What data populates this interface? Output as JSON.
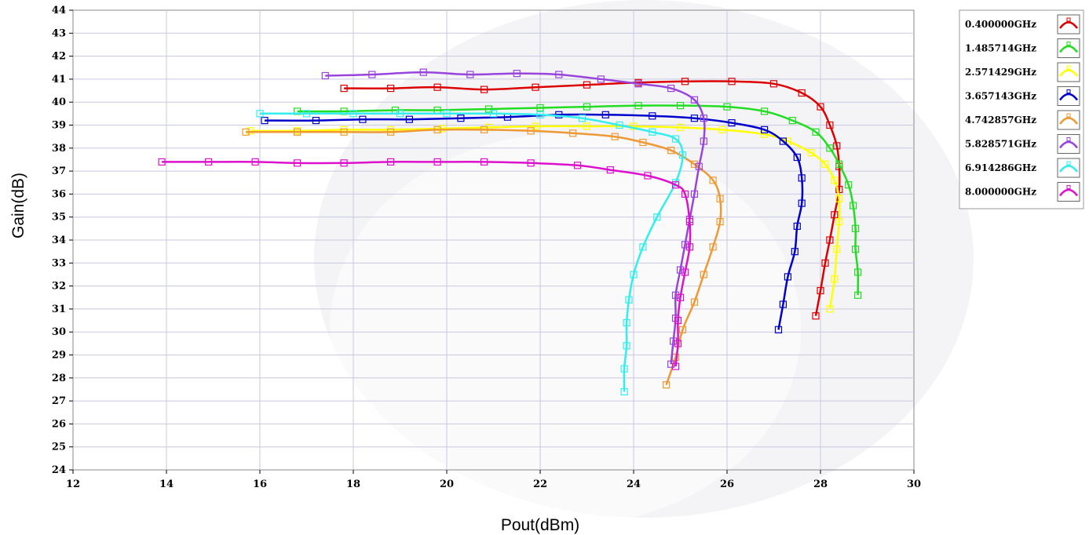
{
  "chart_data": {
    "type": "line",
    "title": "",
    "xlabel": "Pout(dBm)",
    "ylabel": "Gain(dB)",
    "xlim": [
      12,
      30
    ],
    "ylim": [
      24,
      44
    ],
    "x_ticks": [
      12,
      14,
      16,
      18,
      20,
      22,
      24,
      26,
      28,
      30
    ],
    "y_ticks": [
      24,
      25,
      26,
      27,
      28,
      29,
      30,
      31,
      32,
      33,
      34,
      35,
      36,
      37,
      38,
      39,
      40,
      41,
      42,
      43,
      44
    ],
    "grid": true,
    "legend_position": "top-right outside",
    "series": [
      {
        "name": "0.400000GHz",
        "color": "#dd0000",
        "points": [
          [
            17.8,
            40.6
          ],
          [
            18.8,
            40.6
          ],
          [
            19.8,
            40.65
          ],
          [
            20.8,
            40.55
          ],
          [
            21.9,
            40.65
          ],
          [
            23.0,
            40.75
          ],
          [
            24.1,
            40.85
          ],
          [
            25.1,
            40.9
          ],
          [
            26.1,
            40.9
          ],
          [
            27.0,
            40.8
          ],
          [
            27.6,
            40.4
          ],
          [
            28.0,
            39.8
          ],
          [
            28.2,
            39.0
          ],
          [
            28.35,
            38.1
          ],
          [
            28.4,
            37.2
          ],
          [
            28.4,
            36.2
          ],
          [
            28.3,
            35.1
          ],
          [
            28.2,
            34.0
          ],
          [
            28.1,
            33.0
          ],
          [
            28.0,
            31.8
          ],
          [
            27.9,
            30.7
          ]
        ]
      },
      {
        "name": "1.485714GHz",
        "color": "#22dd22",
        "points": [
          [
            16.8,
            39.6
          ],
          [
            17.8,
            39.6
          ],
          [
            18.9,
            39.65
          ],
          [
            19.8,
            39.65
          ],
          [
            20.9,
            39.7
          ],
          [
            22.0,
            39.75
          ],
          [
            23.0,
            39.8
          ],
          [
            24.1,
            39.85
          ],
          [
            25.0,
            39.85
          ],
          [
            26.0,
            39.8
          ],
          [
            26.8,
            39.6
          ],
          [
            27.4,
            39.2
          ],
          [
            27.9,
            38.7
          ],
          [
            28.2,
            38.0
          ],
          [
            28.4,
            37.3
          ],
          [
            28.6,
            36.4
          ],
          [
            28.7,
            35.5
          ],
          [
            28.75,
            34.5
          ],
          [
            28.75,
            33.6
          ],
          [
            28.8,
            32.6
          ],
          [
            28.8,
            31.6
          ]
        ]
      },
      {
        "name": "2.571429GHz",
        "color": "#ffff00",
        "points": [
          [
            15.8,
            38.75
          ],
          [
            16.8,
            38.75
          ],
          [
            17.8,
            38.8
          ],
          [
            18.8,
            38.8
          ],
          [
            19.9,
            38.85
          ],
          [
            20.9,
            38.9
          ],
          [
            21.9,
            38.95
          ],
          [
            23.0,
            38.95
          ],
          [
            24.0,
            38.95
          ],
          [
            25.0,
            38.9
          ],
          [
            25.9,
            38.8
          ],
          [
            26.8,
            38.6
          ],
          [
            27.3,
            38.3
          ],
          [
            27.8,
            37.8
          ],
          [
            28.1,
            37.3
          ],
          [
            28.3,
            36.6
          ],
          [
            28.4,
            35.8
          ],
          [
            28.4,
            34.8
          ],
          [
            28.35,
            33.6
          ],
          [
            28.3,
            32.3
          ],
          [
            28.2,
            31.0
          ]
        ]
      },
      {
        "name": "3.657143GHz",
        "color": "#0000cc",
        "points": [
          [
            16.1,
            39.2
          ],
          [
            17.2,
            39.2
          ],
          [
            18.2,
            39.25
          ],
          [
            19.2,
            39.25
          ],
          [
            20.3,
            39.3
          ],
          [
            21.3,
            39.35
          ],
          [
            22.4,
            39.45
          ],
          [
            23.4,
            39.45
          ],
          [
            24.4,
            39.4
          ],
          [
            25.3,
            39.3
          ],
          [
            26.1,
            39.1
          ],
          [
            26.8,
            38.8
          ],
          [
            27.2,
            38.3
          ],
          [
            27.5,
            37.6
          ],
          [
            27.6,
            36.7
          ],
          [
            27.6,
            35.6
          ],
          [
            27.5,
            34.6
          ],
          [
            27.45,
            33.5
          ],
          [
            27.3,
            32.4
          ],
          [
            27.2,
            31.2
          ],
          [
            27.1,
            30.1
          ]
        ]
      },
      {
        "name": "4.742857GHz",
        "color": "#ee9933",
        "points": [
          [
            15.7,
            38.7
          ],
          [
            16.8,
            38.7
          ],
          [
            17.8,
            38.7
          ],
          [
            18.8,
            38.7
          ],
          [
            19.8,
            38.8
          ],
          [
            20.8,
            38.8
          ],
          [
            21.8,
            38.75
          ],
          [
            22.7,
            38.65
          ],
          [
            23.6,
            38.5
          ],
          [
            24.2,
            38.25
          ],
          [
            24.8,
            37.9
          ],
          [
            25.3,
            37.3
          ],
          [
            25.7,
            36.6
          ],
          [
            25.85,
            35.8
          ],
          [
            25.85,
            34.8
          ],
          [
            25.7,
            33.7
          ],
          [
            25.5,
            32.5
          ],
          [
            25.3,
            31.3
          ],
          [
            25.05,
            30.1
          ],
          [
            24.9,
            28.9
          ],
          [
            24.7,
            27.7
          ]
        ]
      },
      {
        "name": "5.828571GHz",
        "color": "#9944dd",
        "points": [
          [
            17.4,
            41.15
          ],
          [
            18.4,
            41.2
          ],
          [
            19.5,
            41.3
          ],
          [
            20.5,
            41.2
          ],
          [
            21.5,
            41.25
          ],
          [
            22.4,
            41.2
          ],
          [
            23.3,
            41.0
          ],
          [
            24.1,
            40.8
          ],
          [
            24.8,
            40.6
          ],
          [
            25.3,
            40.1
          ],
          [
            25.5,
            39.3
          ],
          [
            25.5,
            38.3
          ],
          [
            25.4,
            37.2
          ],
          [
            25.3,
            36.0
          ],
          [
            25.2,
            34.9
          ],
          [
            25.1,
            33.8
          ],
          [
            25.0,
            32.7
          ],
          [
            24.9,
            31.6
          ],
          [
            24.9,
            30.6
          ],
          [
            24.85,
            29.6
          ],
          [
            24.8,
            28.6
          ]
        ]
      },
      {
        "name": "6.914286GHz",
        "color": "#33eeee",
        "points": [
          [
            16.0,
            39.5
          ],
          [
            17.0,
            39.5
          ],
          [
            18.0,
            39.5
          ],
          [
            19.0,
            39.5
          ],
          [
            20.0,
            39.5
          ],
          [
            21.0,
            39.5
          ],
          [
            22.0,
            39.45
          ],
          [
            22.9,
            39.3
          ],
          [
            23.7,
            39.0
          ],
          [
            24.4,
            38.7
          ],
          [
            24.9,
            38.4
          ],
          [
            25.05,
            37.7
          ],
          [
            24.9,
            36.5
          ],
          [
            24.5,
            35.0
          ],
          [
            24.2,
            33.7
          ],
          [
            24.0,
            32.5
          ],
          [
            23.9,
            31.4
          ],
          [
            23.85,
            30.4
          ],
          [
            23.85,
            29.4
          ],
          [
            23.8,
            28.4
          ],
          [
            23.8,
            27.4
          ]
        ]
      },
      {
        "name": "8.000000GHz",
        "color": "#dd11cc",
        "points": [
          [
            13.9,
            37.4
          ],
          [
            14.9,
            37.4
          ],
          [
            15.9,
            37.4
          ],
          [
            16.8,
            37.35
          ],
          [
            17.8,
            37.35
          ],
          [
            18.8,
            37.4
          ],
          [
            19.8,
            37.4
          ],
          [
            20.8,
            37.4
          ],
          [
            21.8,
            37.35
          ],
          [
            22.8,
            37.25
          ],
          [
            23.5,
            37.05
          ],
          [
            24.3,
            36.8
          ],
          [
            24.9,
            36.4
          ],
          [
            25.1,
            36.0
          ],
          [
            25.2,
            34.8
          ],
          [
            25.2,
            33.7
          ],
          [
            25.1,
            32.6
          ],
          [
            25.0,
            31.5
          ],
          [
            24.95,
            30.5
          ],
          [
            24.95,
            29.5
          ],
          [
            24.9,
            28.5
          ]
        ]
      }
    ]
  }
}
